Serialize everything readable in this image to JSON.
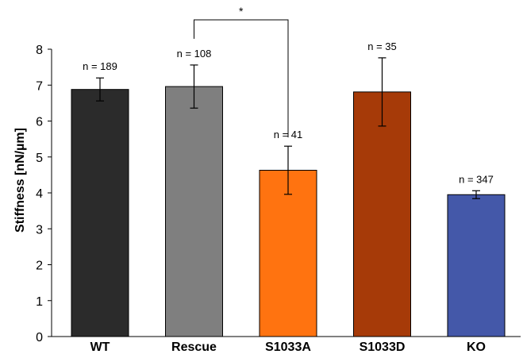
{
  "chart_data": {
    "type": "bar",
    "title": "",
    "xlabel": "",
    "ylabel": "Stiffness [nN/µm]",
    "ylim": [
      0,
      8
    ],
    "yticks": [
      0,
      1,
      2,
      3,
      4,
      5,
      6,
      7,
      8
    ],
    "grid": false,
    "legend": "none",
    "categories": [
      "WT",
      "Rescue",
      "S1033A",
      "S1033D",
      "KO"
    ],
    "values": [
      6.88,
      6.96,
      4.63,
      6.81,
      3.95
    ],
    "errors": [
      0.32,
      0.6,
      0.67,
      0.95,
      0.11
    ],
    "n_labels": [
      "n = 189",
      "n = 108",
      "n = 41",
      "n = 35",
      "n = 347"
    ],
    "colors": [
      "#2b2b2b",
      "#7f7f7f",
      "#ff7310",
      "#a63a08",
      "#4458a9"
    ],
    "significance": [
      {
        "from": "Rescue",
        "to": "S1033A",
        "label": "*"
      }
    ]
  }
}
